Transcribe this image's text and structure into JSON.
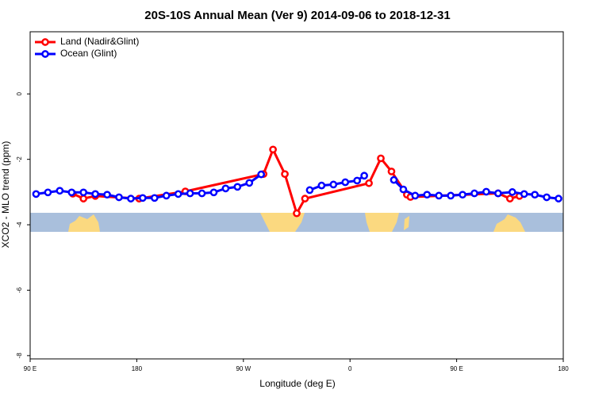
{
  "chart_data": {
    "type": "line",
    "title": "20S-10S Annual Mean (Ver 9)   2014-09-06 to 2018-12-31",
    "x_label": "Longitude (deg E)",
    "y_label": "XCO2 - MLO trend (ppm)",
    "xlim": [
      90,
      540
    ],
    "xticks": [
      {
        "value": 90,
        "label": "90 E"
      },
      180,
      {
        "value": 270,
        "label": "90 W"
      },
      {
        "value": 360,
        "label": "0"
      },
      {
        "value": 450,
        "label": "90 E"
      },
      {
        "value": 540,
        "label": "180"
      }
    ],
    "ylim": [
      -8.1,
      1.9
    ],
    "yticks": [
      0,
      -2,
      -4,
      -6,
      -8
    ],
    "legend": "top-left",
    "series": [
      {
        "name": "Land (Nadir&Glint)",
        "color": "#ff0000",
        "x": [
          126,
          135,
          145,
          182,
          221,
          287,
          295,
          305,
          315,
          322,
          376,
          386,
          395,
          408,
          411,
          485,
          495,
          503
        ],
        "values": [
          -3.05,
          -3.2,
          -3.12,
          -3.2,
          -2.98,
          -2.45,
          -1.7,
          -2.45,
          -3.65,
          -3.2,
          -2.73,
          -1.97,
          -2.37,
          -3.08,
          -3.15,
          -3.04,
          -3.2,
          -3.12
        ]
      },
      {
        "name": "Ocean (Glint)",
        "color": "#0000ff",
        "x": [
          95,
          105,
          115,
          125,
          135,
          145,
          155,
          165,
          175,
          185,
          195,
          205,
          215,
          225,
          235,
          245,
          255,
          265,
          275,
          285,
          305,
          326,
          336,
          346,
          356,
          366,
          372,
          385,
          397,
          405,
          415,
          425,
          435,
          445,
          455,
          465,
          475,
          485,
          497,
          507,
          516,
          526,
          536
        ],
        "values": [
          -3.06,
          -3.01,
          -2.96,
          -3.01,
          -3.01,
          -3.06,
          -3.08,
          -3.16,
          -3.2,
          -3.18,
          -3.18,
          -3.11,
          -3.06,
          -3.04,
          -3.04,
          -3.01,
          -2.89,
          -2.84,
          -2.72,
          -2.46,
          null,
          -2.94,
          -2.8,
          -2.77,
          -2.7,
          -2.65,
          -2.5,
          null,
          -2.63,
          -2.92,
          -3.11,
          -3.08,
          -3.11,
          -3.11,
          -3.08,
          -3.04,
          -2.99,
          -3.04,
          -3.0,
          -3.06,
          -3.08,
          -3.16,
          -3.2
        ]
      }
    ]
  }
}
